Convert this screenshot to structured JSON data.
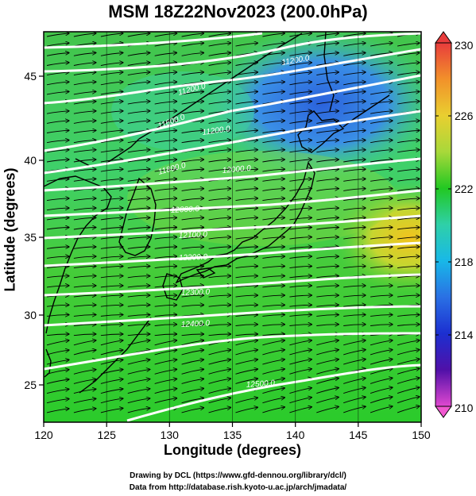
{
  "title": "MSM 18Z22Nov2023 (200.0hPa)",
  "xlabel": "Longitude (degrees)",
  "ylabel": "Latitude  (degrees)",
  "credits": {
    "line1": "Drawing by DCL (https://www.gfd-dennou.org/library/dcl/)",
    "line2": "Data from http://database.rish.kyoto-u.ac.jp/arch/jmadata/"
  },
  "x_ticks": [
    "120",
    "125",
    "130",
    "135",
    "140",
    "145",
    "150"
  ],
  "y_ticks": [
    "25",
    "30",
    "35",
    "40",
    "45"
  ],
  "colorbar": {
    "labels": [
      "230",
      "226",
      "222",
      "218",
      "214",
      "210"
    ],
    "values": [
      230,
      226,
      222,
      218,
      214,
      210
    ],
    "colors": [
      "#e83c3c",
      "#f5a623",
      "#e6d93a",
      "#8fd34a",
      "#1ec81e",
      "#2fd0a0",
      "#18c8e0",
      "#2f8fe8",
      "#1f3fd8",
      "#3010a0",
      "#c020c0",
      "#f058d0"
    ]
  },
  "contour_labels": [
    "11200.0",
    "11200.0",
    "11600.0",
    "11200.0",
    "11800.0",
    "12000.0",
    "12000.0",
    "12100.0",
    "12200.0",
    "12300.0",
    "12400.0",
    "12500.0"
  ],
  "map": {
    "lon_range": [
      120,
      150
    ],
    "lat_range": [
      22.5,
      47.5
    ],
    "field": "temperature-shading",
    "overlays": [
      "geopotential-height-contours",
      "wind-streamlines",
      "coastlines"
    ]
  },
  "colors": {
    "contour": "#ffffff",
    "streamline": "#000000",
    "field_green": "#2bd12b",
    "field_blue": "#2e6fe0",
    "field_yellow": "#f0c020"
  }
}
